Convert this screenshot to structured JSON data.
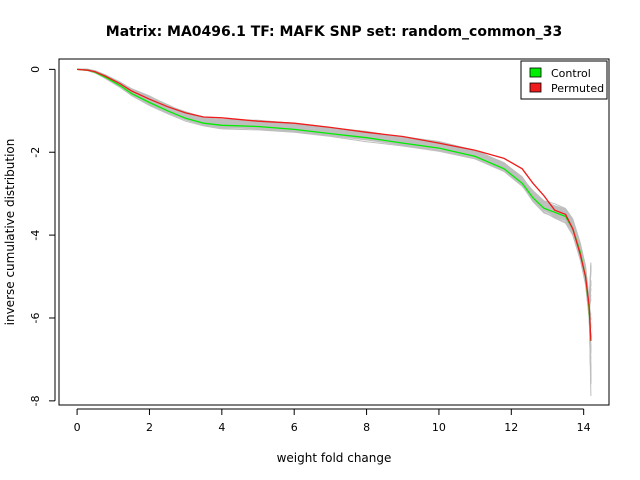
{
  "chart_data": {
    "type": "line",
    "title": "Matrix: MA0496.1 TF: MAFK SNP set: random_common_33",
    "xlabel": "weight fold change",
    "ylabel": "inverse cumulative distribution",
    "xlim": [
      -0.5,
      14.7
    ],
    "ylim": [
      -8.1,
      0.25
    ],
    "x_ticks": [
      0,
      2,
      4,
      6,
      8,
      10,
      12,
      14
    ],
    "y_ticks": [
      0,
      -2,
      -4,
      -6,
      -8
    ],
    "grid": false,
    "legend_position": "top-right",
    "legend": [
      {
        "label": "Control",
        "color": "#00ee00"
      },
      {
        "label": "Permuted",
        "color": "#ee1c1c"
      }
    ],
    "background_series": {
      "description_color": "#bebebe",
      "count": 40
    },
    "series": [
      {
        "name": "Control",
        "color": "#00ee00",
        "x": [
          0,
          0.3,
          0.5,
          0.8,
          1.2,
          1.5,
          2.0,
          2.5,
          3.0,
          3.5,
          4.0,
          5.0,
          6.0,
          7.0,
          8.0,
          9.0,
          10.0,
          11.0,
          11.8,
          12.3,
          12.6,
          12.9,
          13.2,
          13.5,
          13.7,
          13.9,
          14.05,
          14.15,
          14.2
        ],
        "values": [
          0,
          -0.02,
          -0.07,
          -0.2,
          -0.4,
          -0.58,
          -0.8,
          -1.0,
          -1.18,
          -1.3,
          -1.35,
          -1.38,
          -1.45,
          -1.55,
          -1.65,
          -1.78,
          -1.9,
          -2.1,
          -2.4,
          -2.75,
          -3.1,
          -3.35,
          -3.45,
          -3.55,
          -3.85,
          -4.4,
          -5.0,
          -5.8,
          -6.55
        ]
      },
      {
        "name": "Permuted",
        "color": "#ee1c1c",
        "x": [
          0,
          0.3,
          0.5,
          0.8,
          1.2,
          1.5,
          2.0,
          2.5,
          3.0,
          3.5,
          4.0,
          5.0,
          6.0,
          7.0,
          8.0,
          9.0,
          10.0,
          11.0,
          11.8,
          12.3,
          12.6,
          12.9,
          13.2,
          13.5,
          13.7,
          13.9,
          14.05,
          14.15,
          14.2
        ],
        "values": [
          0,
          -0.02,
          -0.06,
          -0.17,
          -0.35,
          -0.52,
          -0.72,
          -0.9,
          -1.05,
          -1.15,
          -1.17,
          -1.25,
          -1.3,
          -1.4,
          -1.52,
          -1.62,
          -1.78,
          -1.95,
          -2.15,
          -2.4,
          -2.75,
          -3.05,
          -3.4,
          -3.5,
          -3.85,
          -4.45,
          -5.0,
          -5.7,
          -6.55
        ]
      }
    ]
  }
}
